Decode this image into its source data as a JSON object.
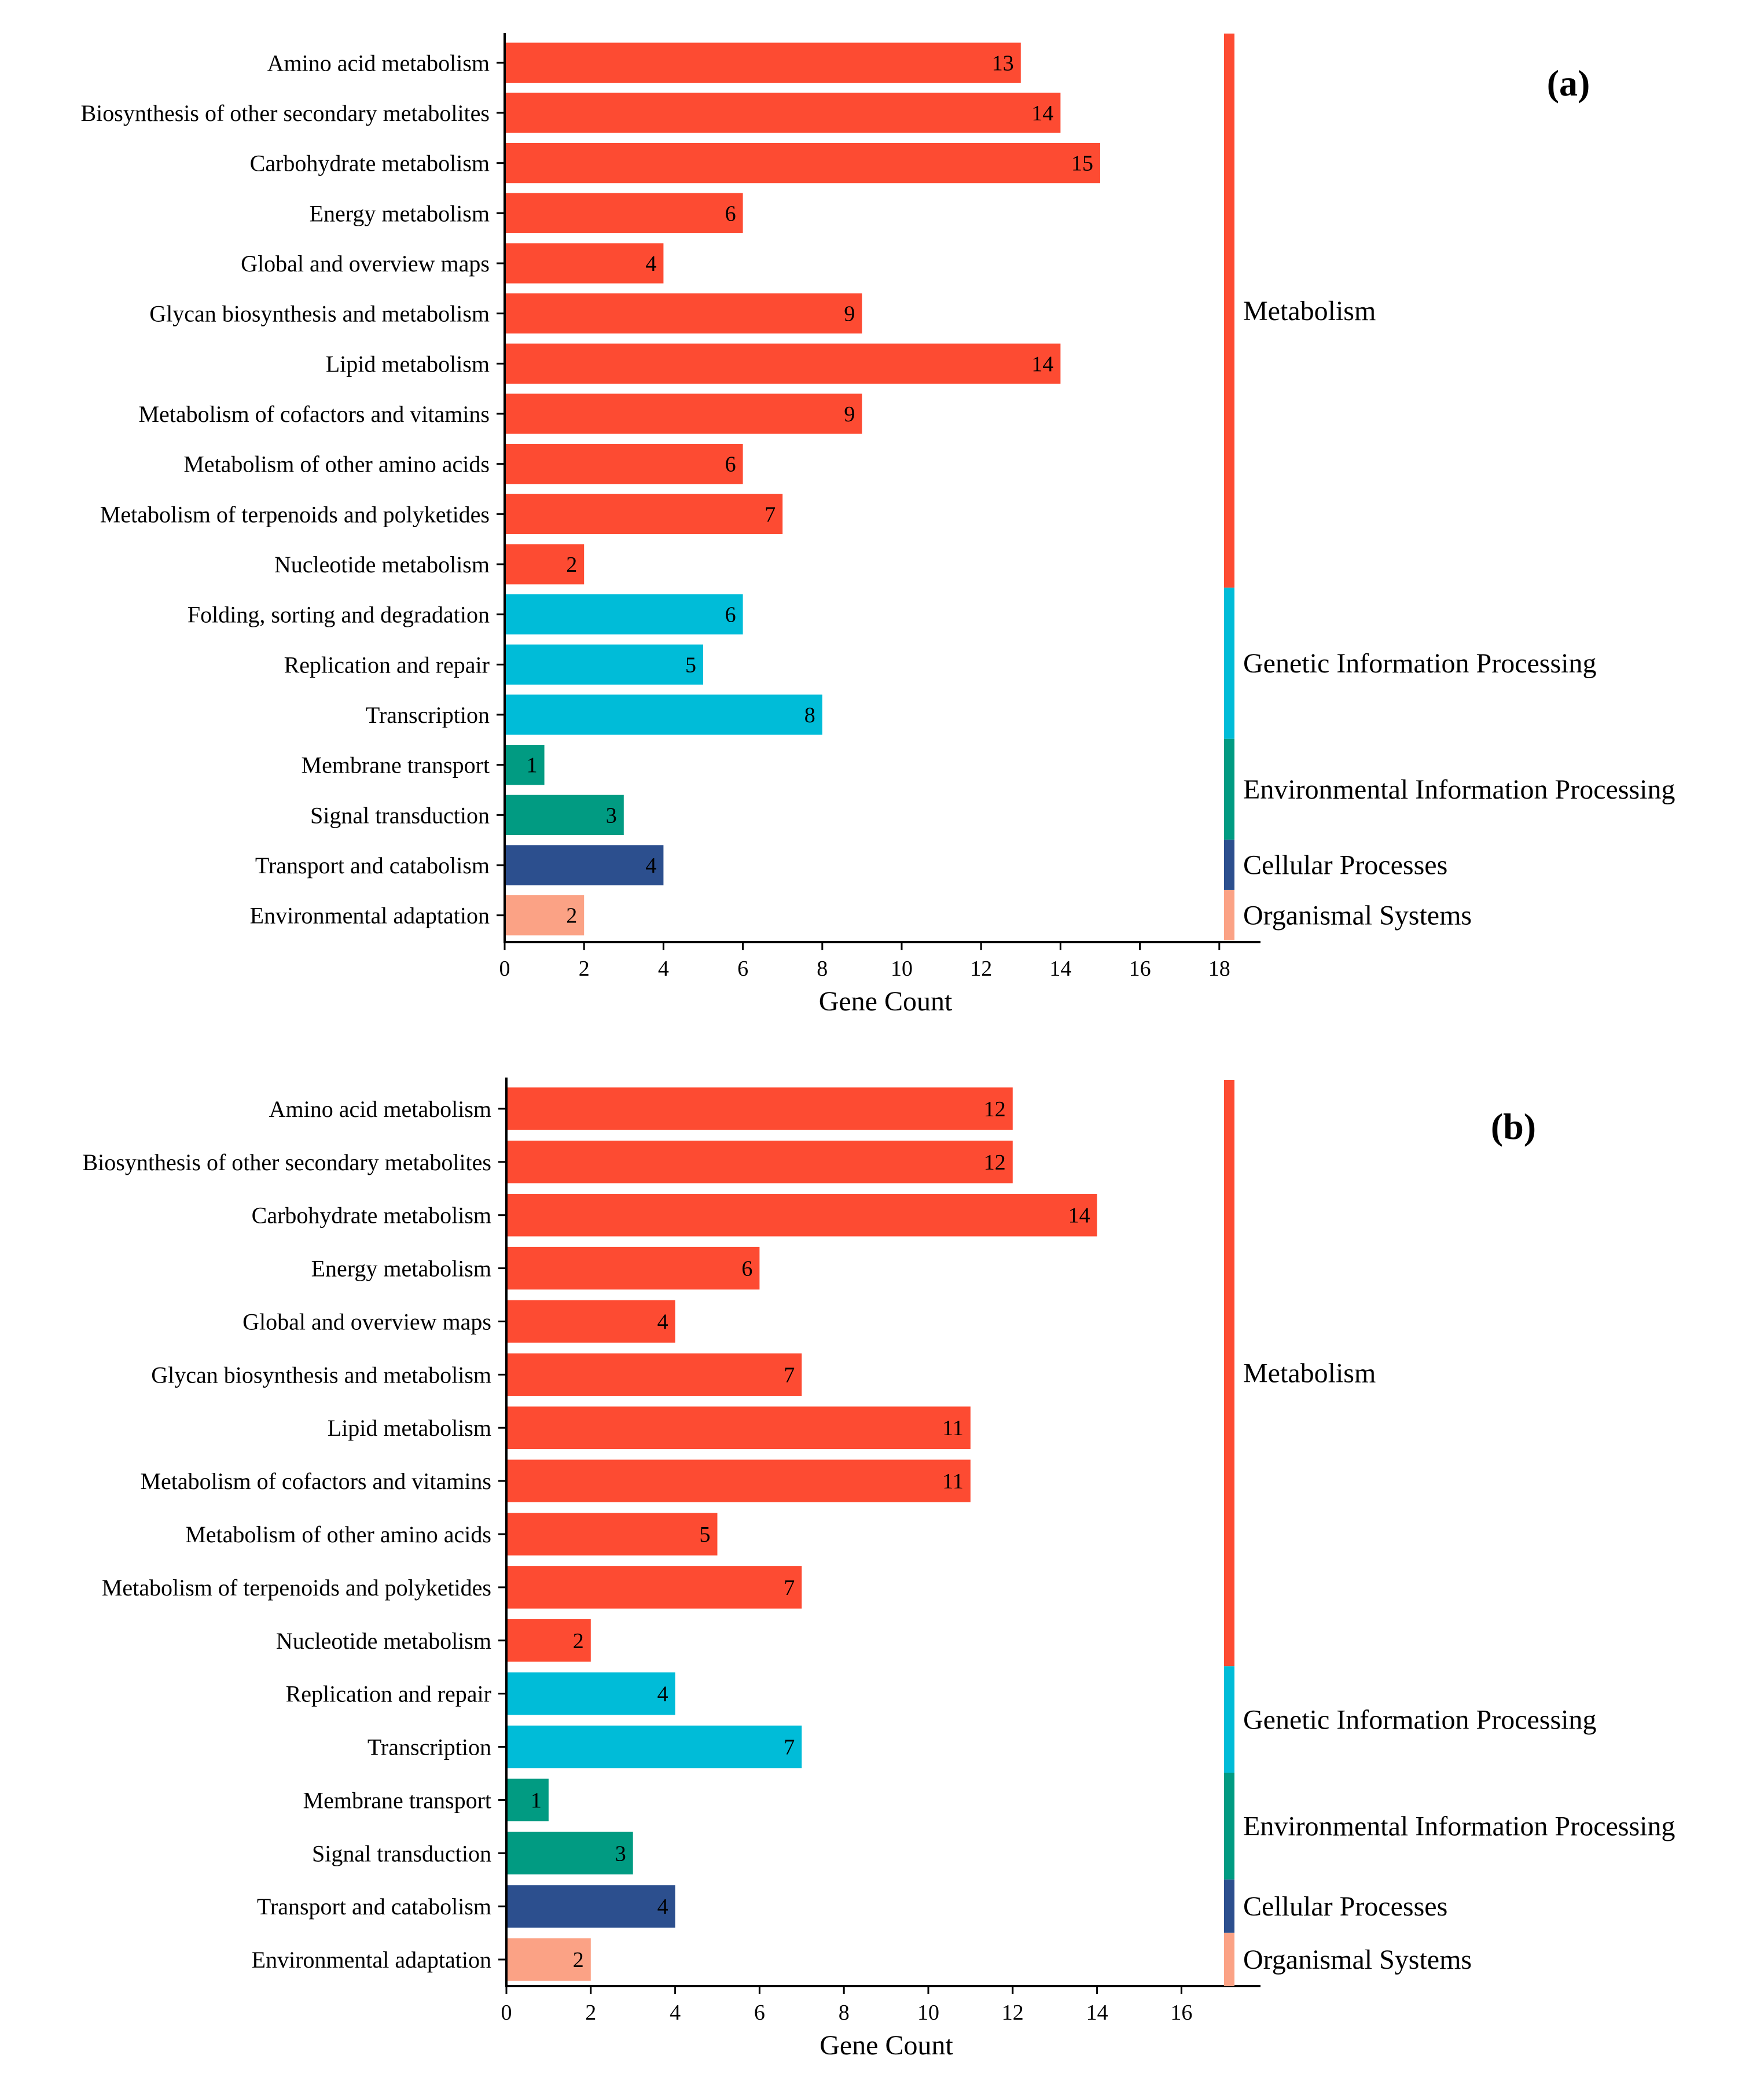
{
  "colors": {
    "Metabolism": "#fd4b32",
    "Genetic Information Processing": "#00bcd8",
    "Environmental Information Processing": "#019b82",
    "Cellular Processes": "#2c4f8e",
    "Organismal Systems": "#fba285"
  },
  "chart_data": [
    {
      "type": "bar",
      "orientation": "horizontal",
      "panel": "(a)",
      "xlabel": "Gene Count",
      "ylabel": "",
      "xlim": [
        0,
        18
      ],
      "xticks": [
        0,
        2,
        4,
        6,
        8,
        10,
        12,
        14,
        16,
        18
      ],
      "categories": [
        "Amino acid metabolism",
        "Biosynthesis of other secondary metabolites",
        "Carbohydrate metabolism",
        "Energy metabolism",
        "Global and overview maps",
        "Glycan biosynthesis and metabolism",
        "Lipid metabolism",
        "Metabolism of cofactors and vitamins",
        "Metabolism of other amino acids",
        "Metabolism of terpenoids and polyketides",
        "Nucleotide metabolism",
        "Folding, sorting and degradation",
        "Replication and repair",
        "Transcription",
        "Membrane transport",
        "Signal transduction",
        "Transport and catabolism",
        "Environmental adaptation"
      ],
      "values": [
        13,
        14,
        15,
        6,
        4,
        9,
        14,
        9,
        6,
        7,
        2,
        6,
        5,
        8,
        1,
        3,
        4,
        2
      ],
      "groups": [
        "Metabolism",
        "Metabolism",
        "Metabolism",
        "Metabolism",
        "Metabolism",
        "Metabolism",
        "Metabolism",
        "Metabolism",
        "Metabolism",
        "Metabolism",
        "Metabolism",
        "Genetic Information Processing",
        "Genetic Information Processing",
        "Genetic Information Processing",
        "Environmental Information Processing",
        "Environmental Information Processing",
        "Cellular Processes",
        "Organismal Systems"
      ],
      "group_labels": [
        "Metabolism",
        "Genetic Information Processing",
        "Environmental Information Processing",
        "Cellular Processes",
        "Organismal Systems"
      ]
    },
    {
      "type": "bar",
      "orientation": "horizontal",
      "panel": "(b)",
      "xlabel": "Gene Count",
      "ylabel": "",
      "xlim": [
        0,
        17
      ],
      "xticks": [
        0,
        2,
        4,
        6,
        8,
        10,
        12,
        14,
        16
      ],
      "categories": [
        "Amino acid metabolism",
        "Biosynthesis of other secondary metabolites",
        "Carbohydrate metabolism",
        "Energy metabolism",
        "Global and overview maps",
        "Glycan biosynthesis and metabolism",
        "Lipid metabolism",
        "Metabolism of cofactors and vitamins",
        "Metabolism of other amino acids",
        "Metabolism of terpenoids and polyketides",
        "Nucleotide metabolism",
        "Replication and repair",
        "Transcription",
        "Membrane transport",
        "Signal transduction",
        "Transport and catabolism",
        "Environmental adaptation"
      ],
      "values": [
        12,
        12,
        14,
        6,
        4,
        7,
        11,
        11,
        5,
        7,
        2,
        4,
        7,
        1,
        3,
        4,
        2
      ],
      "groups": [
        "Metabolism",
        "Metabolism",
        "Metabolism",
        "Metabolism",
        "Metabolism",
        "Metabolism",
        "Metabolism",
        "Metabolism",
        "Metabolism",
        "Metabolism",
        "Metabolism",
        "Genetic Information Processing",
        "Genetic Information Processing",
        "Environmental Information Processing",
        "Environmental Information Processing",
        "Cellular Processes",
        "Organismal Systems"
      ],
      "group_labels": [
        "Metabolism",
        "Genetic Information Processing",
        "Environmental Information Processing",
        "Cellular Processes",
        "Organismal Systems"
      ]
    }
  ]
}
